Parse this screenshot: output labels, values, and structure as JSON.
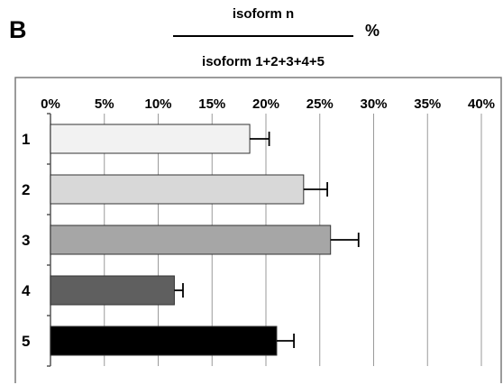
{
  "panel_label": "B",
  "title": {
    "numerator": "isoform n",
    "denominator": "isoform 1+2+3+4+5",
    "unit": "%"
  },
  "chart_data": {
    "type": "bar",
    "orientation": "horizontal",
    "x_tick_labels": [
      "0%",
      "5%",
      "10%",
      "15%",
      "20%",
      "25%",
      "30%",
      "35%",
      "40%"
    ],
    "xlim": [
      0,
      40
    ],
    "x_axis_position": "top",
    "grid": "vertical",
    "categories": [
      "1",
      "2",
      "3",
      "4",
      "5"
    ],
    "values": [
      18.5,
      23.5,
      26,
      11.5,
      21
    ],
    "errors": [
      1.8,
      2.2,
      2.6,
      0.8,
      1.6
    ],
    "bar_colors": [
      "#f2f2f2",
      "#d8d8d8",
      "#a6a6a6",
      "#5f5f5f",
      "#000000"
    ]
  }
}
